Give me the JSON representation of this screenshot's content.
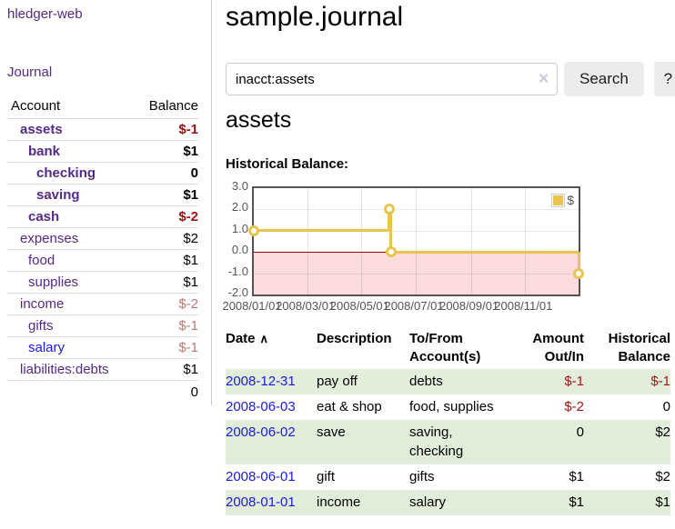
{
  "app": {
    "title": "hledger-web"
  },
  "colors": {
    "purple_link": "#55288c",
    "blue_link": "#1a1ae6",
    "negative_strong": "#9c1414",
    "negative_muted": "#c17878",
    "row_green": "#e2eeda",
    "chart_line": "#e9c44f",
    "chart_negative_region": "#fbdbdb",
    "chart_zero_line": "#8b0000",
    "axis_text": "#545454"
  },
  "sidebar": {
    "journal_link": "Journal",
    "accounts_table": {
      "headers": {
        "account": "Account",
        "balance": "Balance"
      },
      "rows": [
        {
          "name": "assets",
          "depth": 1,
          "bold": true,
          "balance": "$-1",
          "balance_tone": "neg-strong",
          "link_color": "purple"
        },
        {
          "name": "bank",
          "depth": 2,
          "bold": true,
          "balance": "$1",
          "balance_tone": "pos",
          "link_color": "purple"
        },
        {
          "name": "checking",
          "depth": 3,
          "bold": true,
          "balance": "0",
          "balance_tone": "pos",
          "link_color": "purple"
        },
        {
          "name": "saving",
          "depth": 3,
          "bold": true,
          "balance": "$1",
          "balance_tone": "pos",
          "link_color": "purple"
        },
        {
          "name": "cash",
          "depth": 2,
          "bold": true,
          "balance": "$-2",
          "balance_tone": "neg-strong",
          "link_color": "purple"
        },
        {
          "name": "expenses",
          "depth": 1,
          "bold": false,
          "balance": "$2",
          "balance_tone": "pos",
          "link_color": "purple"
        },
        {
          "name": "food",
          "depth": 2,
          "bold": false,
          "balance": "$1",
          "balance_tone": "pos",
          "link_color": "purple"
        },
        {
          "name": "supplies",
          "depth": 2,
          "bold": false,
          "balance": "$1",
          "balance_tone": "pos",
          "link_color": "purple"
        },
        {
          "name": "income",
          "depth": 1,
          "bold": false,
          "balance": "$-2",
          "balance_tone": "neg-muted",
          "link_color": "purple"
        },
        {
          "name": "gifts",
          "depth": 2,
          "bold": false,
          "balance": "$-1",
          "balance_tone": "neg-muted",
          "link_color": "purple"
        },
        {
          "name": "salary",
          "depth": 2,
          "bold": false,
          "balance": "$-1",
          "balance_tone": "neg-muted",
          "link_color": "blue"
        },
        {
          "name": "liabilities:debts",
          "depth": 1,
          "bold": false,
          "balance": "$1",
          "balance_tone": "pos",
          "link_color": "purple"
        }
      ],
      "total": "0"
    }
  },
  "main": {
    "title": "sample.journal",
    "search": {
      "value": "inacct:assets",
      "clear_icon_glyph": "✕",
      "button": "Search",
      "help_button": "?"
    },
    "account_heading": "assets",
    "chart_label": "Historical Balance:"
  },
  "chart_data": {
    "type": "line",
    "step": true,
    "title": "Historical Balance:",
    "legend": {
      "label": "$",
      "position": "top-right"
    },
    "ylim": [
      -2,
      3
    ],
    "yticks": [
      {
        "value": 3,
        "label": "3.0"
      },
      {
        "value": 2,
        "label": "2.0"
      },
      {
        "value": 1,
        "label": "1.0"
      },
      {
        "value": 0,
        "label": "0.0"
      },
      {
        "value": -1,
        "label": "-1.0"
      },
      {
        "value": -2,
        "label": "-2.0"
      }
    ],
    "x_range_days": [
      0,
      365
    ],
    "xticks": [
      {
        "day": 0,
        "label": "2008/01/01"
      },
      {
        "day": 60,
        "label": "2008/03/01"
      },
      {
        "day": 121,
        "label": "2008/05/01"
      },
      {
        "day": 182,
        "label": "2008/07/01"
      },
      {
        "day": 244,
        "label": "2008/09/01"
      },
      {
        "day": 305,
        "label": "2008/11/01"
      }
    ],
    "series": [
      {
        "name": "$",
        "points": [
          {
            "date": "2008/01/01",
            "day": 0,
            "value": 1
          },
          {
            "date": "2008/06/01",
            "day": 152,
            "value": 2
          },
          {
            "date": "2008/06/03",
            "day": 154,
            "value": 0
          },
          {
            "date": "2008/12/31",
            "day": 365,
            "value": -1
          }
        ]
      }
    ],
    "grid": true,
    "negative_region_shaded": true
  },
  "register": {
    "headers": [
      {
        "line1": "Date",
        "sort_icon": "∧",
        "align": "left"
      },
      {
        "line1": "Description",
        "align": "left"
      },
      {
        "line1": "To/From",
        "line2": "Account(s)",
        "align": "left"
      },
      {
        "line1": "Amount",
        "line2": "Out/In",
        "align": "right"
      },
      {
        "line1": "Historical",
        "line2": "Balance",
        "align": "right"
      }
    ],
    "rows": [
      {
        "date": "2008-12-31",
        "description": "pay off",
        "accounts": "debts",
        "amount": "$-1",
        "amount_neg": true,
        "balance": "$-1",
        "balance_neg": true,
        "shaded": true
      },
      {
        "date": "2008-06-03",
        "description": "eat & shop",
        "accounts": "food, supplies",
        "amount": "$-2",
        "amount_neg": true,
        "balance": "0",
        "balance_neg": false,
        "shaded": false
      },
      {
        "date": "2008-06-02",
        "description": "save",
        "accounts": "saving, checking",
        "amount": "0",
        "amount_neg": false,
        "balance": "$2",
        "balance_neg": false,
        "shaded": true
      },
      {
        "date": "2008-06-01",
        "description": "gift",
        "accounts": "gifts",
        "amount": "$1",
        "amount_neg": false,
        "balance": "$2",
        "balance_neg": false,
        "shaded": false
      },
      {
        "date": "2008-01-01",
        "description": "income",
        "accounts": "salary",
        "amount": "$1",
        "amount_neg": false,
        "balance": "$1",
        "balance_neg": false,
        "shaded": true
      }
    ]
  }
}
